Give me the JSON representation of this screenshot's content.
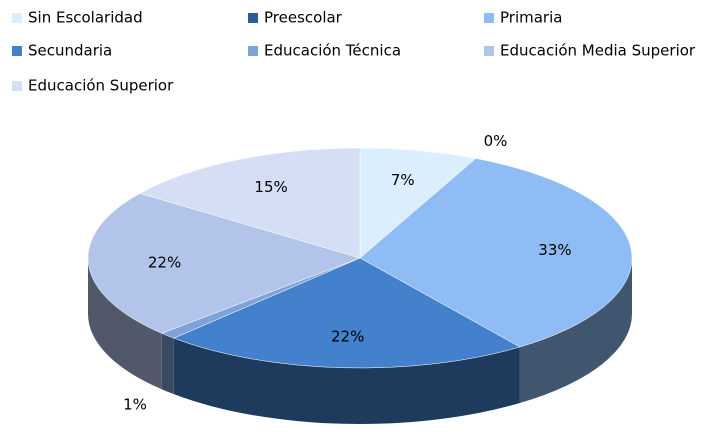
{
  "chart_data": {
    "type": "pie3d",
    "categories": [
      "Sin Escolaridad",
      "Preescolar",
      "Primaria",
      "Secundaria",
      "Educación Técnica",
      "Educación Media Superior",
      "Educación Superior"
    ],
    "values": [
      7,
      0,
      33,
      22,
      1,
      22,
      15
    ],
    "value_labels": [
      "7%",
      "0%",
      "33%",
      "22%",
      "1%",
      "22%",
      "15%"
    ],
    "colors": [
      "#dbeefe",
      "#2e5c9a",
      "#8fbcf5",
      "#4381cc",
      "#7fa2d8",
      "#b2c4ea",
      "#d4dff5"
    ],
    "legend": "top"
  }
}
